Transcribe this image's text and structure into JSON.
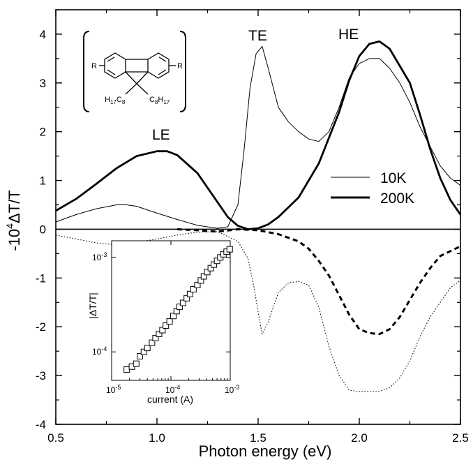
{
  "chart_data": {
    "type": "line",
    "xlabel": "Photon energy (eV)",
    "ylabel_parts": [
      "-10",
      "4",
      "ΔT/T"
    ],
    "xlim": [
      0.5,
      2.5
    ],
    "ylim": [
      -4,
      4.5
    ],
    "x_ticks": [
      "0.5",
      "1.0",
      "1.5",
      "2.0",
      "2.5"
    ],
    "y_ticks": [
      "-4",
      "-3",
      "-2",
      "-1",
      "0",
      "1",
      "2",
      "3",
      "4"
    ],
    "annotations": [
      "LE",
      "TE",
      "HE"
    ],
    "legend_position": "right",
    "series": [
      {
        "name": "10K",
        "style": "thin solid",
        "color": "#000000",
        "x": [
          0.5,
          0.6,
          0.7,
          0.8,
          0.85,
          0.9,
          1.0,
          1.1,
          1.2,
          1.3,
          1.35,
          1.4,
          1.43,
          1.46,
          1.49,
          1.52,
          1.55,
          1.6,
          1.65,
          1.7,
          1.75,
          1.8,
          1.85,
          1.9,
          1.95,
          2.0,
          2.05,
          2.1,
          2.15,
          2.2,
          2.25,
          2.3,
          2.35,
          2.4,
          2.45,
          2.5
        ],
        "y": [
          0.15,
          0.3,
          0.42,
          0.5,
          0.5,
          0.47,
          0.33,
          0.2,
          0.08,
          0.02,
          0.05,
          0.5,
          1.6,
          2.9,
          3.6,
          3.75,
          3.3,
          2.5,
          2.2,
          2.0,
          1.85,
          1.8,
          2.0,
          2.5,
          3.1,
          3.4,
          3.5,
          3.5,
          3.3,
          3.0,
          2.6,
          2.1,
          1.7,
          1.3,
          1.05,
          0.9
        ]
      },
      {
        "name": "200K",
        "style": "thick solid",
        "color": "#000000",
        "x": [
          0.5,
          0.6,
          0.7,
          0.8,
          0.9,
          1.0,
          1.05,
          1.1,
          1.2,
          1.3,
          1.35,
          1.4,
          1.45,
          1.5,
          1.55,
          1.6,
          1.7,
          1.8,
          1.9,
          1.95,
          2.0,
          2.05,
          2.1,
          2.15,
          2.2,
          2.25,
          2.3,
          2.35,
          2.4,
          2.45,
          2.5
        ],
        "y": [
          0.38,
          0.62,
          0.93,
          1.25,
          1.5,
          1.6,
          1.6,
          1.52,
          1.15,
          0.55,
          0.25,
          0.07,
          0.0,
          0.02,
          0.1,
          0.25,
          0.65,
          1.35,
          2.4,
          3.05,
          3.55,
          3.8,
          3.85,
          3.7,
          3.35,
          3.0,
          2.35,
          1.65,
          1.05,
          0.6,
          0.3
        ]
      },
      {
        "name": "",
        "style": "thin dotted",
        "color": "#000000",
        "x": [
          0.5,
          0.6,
          0.7,
          0.8,
          0.9,
          1.0,
          1.1,
          1.2,
          1.3,
          1.4,
          1.45,
          1.48,
          1.5,
          1.52,
          1.55,
          1.6,
          1.65,
          1.7,
          1.75,
          1.8,
          1.85,
          1.9,
          1.95,
          2.0,
          2.05,
          2.1,
          2.15,
          2.2,
          2.25,
          2.3,
          2.35,
          2.4,
          2.45,
          2.5
        ],
        "y": [
          -0.12,
          -0.2,
          -0.28,
          -0.32,
          -0.27,
          -0.2,
          -0.12,
          -0.06,
          -0.05,
          -0.25,
          -0.6,
          -1.2,
          -1.7,
          -2.15,
          -1.9,
          -1.3,
          -1.1,
          -1.07,
          -1.15,
          -1.6,
          -2.4,
          -3.0,
          -3.3,
          -3.33,
          -3.32,
          -3.32,
          -3.25,
          -3.05,
          -2.7,
          -2.2,
          -1.8,
          -1.5,
          -1.2,
          -1.05
        ]
      },
      {
        "name": "",
        "style": "thick dashed",
        "color": "#000000",
        "x": [
          1.1,
          1.2,
          1.3,
          1.4,
          1.5,
          1.6,
          1.7,
          1.75,
          1.8,
          1.85,
          1.9,
          1.95,
          2.0,
          2.05,
          2.1,
          2.15,
          2.2,
          2.25,
          2.3,
          2.35,
          2.4,
          2.45,
          2.5
        ],
        "y": [
          0.0,
          -0.02,
          -0.05,
          0.0,
          -0.02,
          -0.1,
          -0.25,
          -0.4,
          -0.65,
          -0.95,
          -1.35,
          -1.75,
          -2.05,
          -2.13,
          -2.15,
          -2.05,
          -1.8,
          -1.45,
          -1.1,
          -0.8,
          -0.55,
          -0.45,
          -0.35
        ]
      }
    ],
    "legend": [
      {
        "label": "10K",
        "style": "thin solid"
      },
      {
        "label": "200K",
        "style": "thick solid"
      }
    ],
    "inset": {
      "type": "scatter",
      "xscale": "log",
      "yscale": "log",
      "xlabel": "current (A)",
      "ylabel": "|ΔT/T|",
      "xlim": [
        1e-05,
        0.001
      ],
      "ylim": [
        5e-05,
        0.0015
      ],
      "x_ticks": [
        {
          "base": "10",
          "exp": "-5"
        },
        {
          "base": "10",
          "exp": "-4"
        },
        {
          "base": "10",
          "exp": "-3"
        }
      ],
      "y_ticks": [
        {
          "base": "10",
          "exp": "-4"
        },
        {
          "base": "10",
          "exp": "-3"
        }
      ],
      "marker": "open-square",
      "x": [
        1.8e-05,
        2.2e-05,
        2.6e-05,
        3e-05,
        3.5e-05,
        4e-05,
        4.8e-05,
        5.5e-05,
        6.3e-05,
        7.2e-05,
        8.2e-05,
        9.5e-05,
        0.00011,
        0.000125,
        0.00014,
        0.00016,
        0.000185,
        0.00021,
        0.00024,
        0.00028,
        0.00032,
        0.00036,
        0.00041,
        0.00047,
        0.00053,
        0.0006,
        0.00068,
        0.00077,
        0.00087,
        0.00098
      ],
      "y": [
        6.5e-05,
        7e-05,
        7.5e-05,
        9e-05,
        0.0001,
        0.00011,
        0.000125,
        0.00014,
        0.000155,
        0.00017,
        0.00019,
        0.00021,
        0.00024,
        0.00027,
        0.0003,
        0.00033,
        0.00037,
        0.00041,
        0.00046,
        0.00051,
        0.00057,
        0.00063,
        0.0007,
        0.00077,
        0.00084,
        0.00092,
        0.001,
        0.00108,
        0.00115,
        0.00122
      ]
    },
    "structure_labels": {
      "r_left": "R",
      "r_right": "R",
      "sub_left": {
        "a": "H",
        "b": "17",
        "c": "C",
        "d": "8"
      },
      "sub_right": {
        "a": "C",
        "b": "8",
        "c": "H",
        "d": "17"
      }
    }
  }
}
